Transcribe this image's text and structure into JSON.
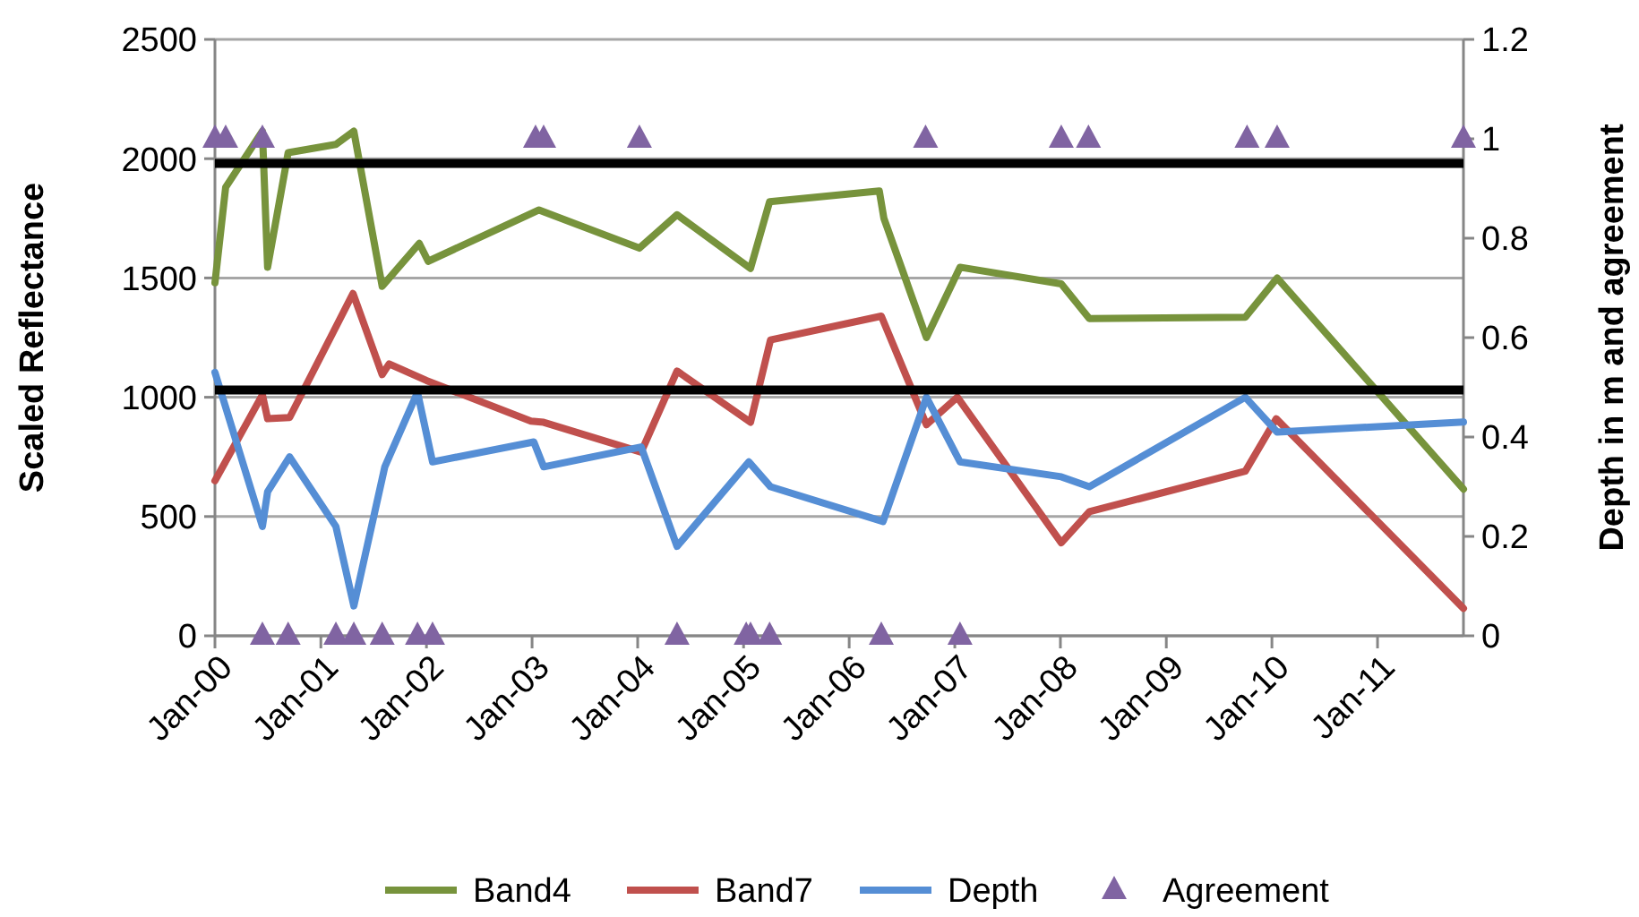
{
  "chart_data": {
    "type": "line",
    "ylabel": "Scaled Reflectance",
    "y2label": "Depth in m and agreement",
    "xlim": [
      "2000-01-01",
      "2011-10-25"
    ],
    "xticks": [
      {
        "value": "2000-01-01",
        "label": "Jan-00"
      },
      {
        "value": "2001-01-01",
        "label": "Jan-01"
      },
      {
        "value": "2002-01-01",
        "label": "Jan-02"
      },
      {
        "value": "2003-01-01",
        "label": "Jan-03"
      },
      {
        "value": "2004-01-01",
        "label": "Jan-04"
      },
      {
        "value": "2005-01-01",
        "label": "Jan-05"
      },
      {
        "value": "2006-01-01",
        "label": "Jan-06"
      },
      {
        "value": "2007-01-01",
        "label": "Jan-07"
      },
      {
        "value": "2008-01-01",
        "label": "Jan-08"
      },
      {
        "value": "2009-01-01",
        "label": "Jan-09"
      },
      {
        "value": "2010-01-01",
        "label": "Jan-10"
      },
      {
        "value": "2011-01-01",
        "label": "Jan-11"
      }
    ],
    "ylim": [
      0,
      2500
    ],
    "yticks": [
      0,
      500,
      1000,
      1500,
      2000,
      2500
    ],
    "y2lim": [
      0,
      1.2
    ],
    "y2ticks": [
      0,
      0.2,
      0.4,
      0.6,
      0.8,
      1,
      1.2
    ],
    "grid": "y",
    "legend": "bottom",
    "ref_lines": [
      {
        "axis": "y",
        "value": 1980,
        "color": "#000000"
      },
      {
        "axis": "y",
        "value": 1030,
        "color": "#000000"
      }
    ],
    "series": [
      {
        "name": "Band4",
        "color": "#77933c",
        "marker": "none",
        "x": [
          "2000-01-01",
          "2000-02-07",
          "2000-06-13",
          "2000-07-01",
          "2000-09-10",
          "2001-02-22",
          "2001-04-25",
          "2001-08-01",
          "2001-12-07",
          "2002-01-07",
          "2003-01-25",
          "2004-01-07",
          "2004-05-16",
          "2005-01-25",
          "2005-04-01",
          "2006-04-15",
          "2006-05-01",
          "2006-09-25",
          "2007-01-19",
          "2008-01-04",
          "2008-04-10",
          "2009-10-01",
          "2010-01-19",
          "2011-10-25"
        ],
        "values": [
          1480,
          1880,
          2115,
          1545,
          2025,
          2060,
          2115,
          1465,
          1645,
          1570,
          1785,
          1625,
          1765,
          1540,
          1820,
          1865,
          1750,
          1250,
          1545,
          1475,
          1330,
          1335,
          1500,
          615
        ]
      },
      {
        "name": "Band7",
        "color": "#c0504d",
        "marker": "none",
        "x": [
          "2000-01-01",
          "2000-06-13",
          "2000-07-01",
          "2000-09-15",
          "2001-04-22",
          "2001-08-01",
          "2001-08-25",
          "2002-01-01",
          "2002-12-28",
          "2003-02-10",
          "2004-01-13",
          "2004-05-16",
          "2005-01-25",
          "2005-04-04",
          "2006-04-22",
          "2006-09-25",
          "2007-01-10",
          "2008-01-04",
          "2008-04-10",
          "2009-10-01",
          "2010-01-16",
          "2011-10-25"
        ],
        "values": [
          650,
          1010,
          910,
          915,
          1435,
          1095,
          1140,
          1070,
          900,
          895,
          770,
          1110,
          895,
          1240,
          1340,
          885,
          1000,
          390,
          520,
          690,
          910,
          115
        ]
      },
      {
        "name": "Depth",
        "color": "#558ed5",
        "marker": "none",
        "axis": "y2",
        "x": [
          "2000-01-01",
          "2000-06-13",
          "2000-07-01",
          "2000-09-15",
          "2001-02-22",
          "2001-04-25",
          "2001-08-10",
          "2001-12-01",
          "2002-01-22",
          "2003-01-07",
          "2003-02-10",
          "2004-01-13",
          "2004-05-16",
          "2005-01-19",
          "2005-04-04",
          "2006-04-28",
          "2006-09-25",
          "2007-01-19",
          "2008-01-04",
          "2008-04-10",
          "2009-10-01",
          "2010-01-19",
          "2011-10-25"
        ],
        "values": [
          0.53,
          0.22,
          0.29,
          0.36,
          0.22,
          0.06,
          0.34,
          0.49,
          0.35,
          0.39,
          0.34,
          0.38,
          0.18,
          0.35,
          0.3,
          0.23,
          0.48,
          0.35,
          0.32,
          0.3,
          0.48,
          0.41,
          0.43
        ]
      },
      {
        "name": "Agreement",
        "type": "scatter",
        "color": "#8064a2",
        "marker": "triangle",
        "axis": "y2",
        "x": [
          "2000-01-01",
          "2000-02-07",
          "2000-06-13",
          "2000-06-13",
          "2000-09-10",
          "2001-02-22",
          "2001-04-25",
          "2001-08-01",
          "2001-12-01",
          "2002-01-22",
          "2003-01-13",
          "2003-02-10",
          "2004-01-07",
          "2004-05-16",
          "2005-01-10",
          "2005-01-25",
          "2005-04-01",
          "2006-04-22",
          "2006-09-22",
          "2007-01-19",
          "2008-01-04",
          "2008-04-07",
          "2009-10-07",
          "2010-01-19",
          "2011-10-25"
        ],
        "values": [
          1,
          1,
          1,
          0,
          0,
          0,
          0,
          0,
          0,
          0,
          1,
          1,
          1,
          0,
          0,
          0,
          0,
          0,
          1,
          0,
          1,
          1,
          1,
          1,
          1
        ]
      }
    ]
  }
}
